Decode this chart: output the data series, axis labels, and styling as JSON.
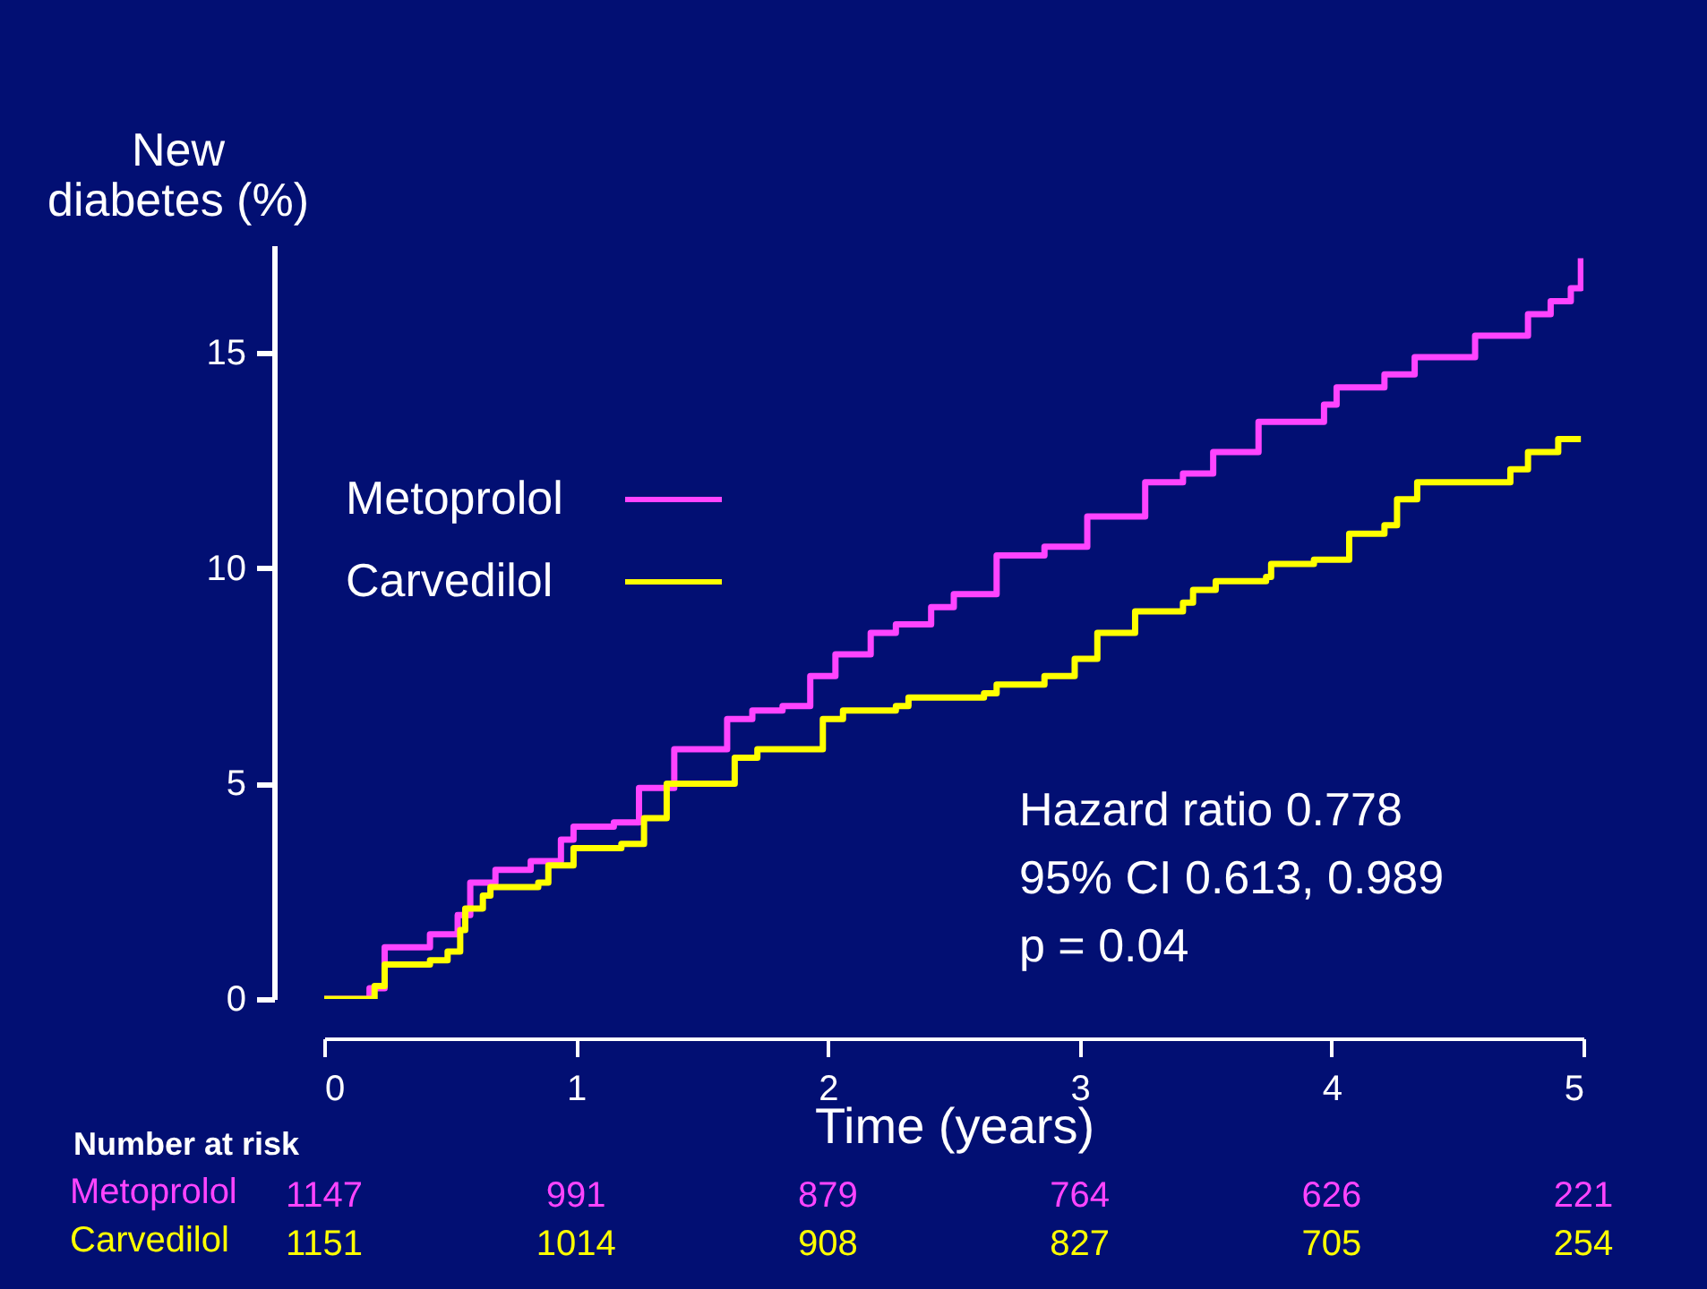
{
  "chart_data": {
    "type": "step",
    "xlabel": "Time (years)",
    "ylabel": "New diabetes (%)",
    "xlim": [
      0,
      5
    ],
    "xticks": [
      0,
      1,
      2,
      3,
      4,
      5
    ],
    "ylim": [
      0,
      17.5
    ],
    "yticks": [
      0,
      5,
      10,
      15
    ],
    "grid": false,
    "legend": "left",
    "marker": "none",
    "line_style": "solid",
    "series": [
      {
        "name": "Metoprolol",
        "color": "#ff44ff",
        "x": [
          0,
          0.18,
          0.24,
          0.42,
          0.53,
          0.58,
          0.68,
          0.82,
          0.94,
          0.99,
          1.15,
          1.25,
          1.39,
          1.56,
          1.6,
          1.7,
          1.82,
          1.93,
          2.03,
          2.17,
          2.27,
          2.41,
          2.5,
          2.67,
          2.86,
          3.03,
          3.26,
          3.41,
          3.53,
          3.71,
          3.97,
          4.02,
          4.21,
          4.33,
          4.52,
          4.57,
          4.76,
          4.78,
          4.87,
          4.95,
          4.99
        ],
        "values": [
          0,
          0.25,
          1.2,
          1.5,
          1.95,
          2.7,
          3.0,
          3.2,
          3.7,
          4.0,
          4.1,
          4.9,
          5.8,
          5.8,
          6.5,
          6.7,
          6.8,
          7.5,
          8.0,
          8.5,
          8.7,
          9.1,
          9.4,
          10.3,
          10.5,
          11.2,
          12.0,
          12.2,
          12.7,
          13.4,
          13.8,
          14.2,
          14.5,
          14.9,
          14.9,
          15.4,
          15.4,
          15.9,
          16.2,
          16.5,
          17.2
        ]
      },
      {
        "name": "Carvedilol",
        "color": "#ffff00",
        "x": [
          0,
          0.2,
          0.24,
          0.42,
          0.49,
          0.54,
          0.56,
          0.63,
          0.66,
          0.85,
          0.89,
          0.99,
          1.18,
          1.27,
          1.36,
          1.59,
          1.63,
          1.72,
          1.86,
          1.98,
          2.06,
          2.27,
          2.32,
          2.62,
          2.67,
          2.86,
          2.98,
          3.07,
          3.22,
          3.41,
          3.45,
          3.54,
          3.74,
          3.76,
          3.93,
          4.07,
          4.21,
          4.26,
          4.34,
          4.67,
          4.71,
          4.78,
          4.9,
          4.99
        ],
        "values": [
          0,
          0.3,
          0.8,
          0.9,
          1.1,
          1.6,
          2.1,
          2.4,
          2.6,
          2.7,
          3.1,
          3.5,
          3.6,
          4.2,
          5.0,
          5.0,
          5.6,
          5.8,
          5.8,
          6.5,
          6.7,
          6.8,
          7.0,
          7.1,
          7.3,
          7.5,
          7.9,
          8.5,
          9.0,
          9.2,
          9.5,
          9.7,
          9.8,
          10.1,
          10.2,
          10.8,
          11.0,
          11.6,
          12.0,
          12.0,
          12.3,
          12.7,
          13.0,
          13.0
        ]
      }
    ],
    "annotations": [
      "Hazard ratio 0.778",
      "95% CI 0.613, 0.989",
      "p = 0.04",
      "Number at risk",
      "1147",
      "991",
      "879",
      "764",
      "626",
      "221",
      "1151",
      "1014",
      "908",
      "827",
      "705",
      "254"
    ]
  }
}
